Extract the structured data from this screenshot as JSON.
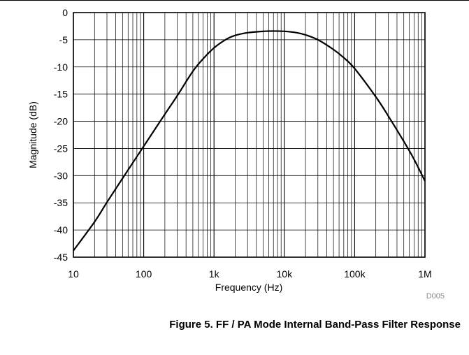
{
  "figure": {
    "id": "D005",
    "caption": "Figure 5. FF / PA Mode Internal Band-Pass Filter Response"
  },
  "chart_data": {
    "type": "line",
    "xscale": "log",
    "xlabel": "Frequency (Hz)",
    "ylabel": "Magnitude (dB)",
    "xlim": [
      10,
      1000000
    ],
    "ylim": [
      -45,
      0
    ],
    "grid": true,
    "x_ticks": [
      {
        "value": 10,
        "label": "10"
      },
      {
        "value": 100,
        "label": "100"
      },
      {
        "value": 1000,
        "label": "1k"
      },
      {
        "value": 10000,
        "label": "10k"
      },
      {
        "value": 100000,
        "label": "100k"
      },
      {
        "value": 1000000,
        "label": "1M"
      }
    ],
    "y_ticks": [
      {
        "value": 0,
        "label": "0"
      },
      {
        "value": -5,
        "label": "-5"
      },
      {
        "value": -10,
        "label": "-10"
      },
      {
        "value": -15,
        "label": "-15"
      },
      {
        "value": -20,
        "label": "-20"
      },
      {
        "value": -25,
        "label": "-25"
      },
      {
        "value": -30,
        "label": "-30"
      },
      {
        "value": -35,
        "label": "-35"
      },
      {
        "value": -40,
        "label": "-40"
      },
      {
        "value": -45,
        "label": "-45"
      }
    ],
    "series": [
      {
        "color": "#000000",
        "x": [
          10,
          20,
          30,
          50,
          100,
          200,
          300,
          500,
          700,
          1000,
          1500,
          2000,
          3000,
          5000,
          7000,
          10000,
          15000,
          20000,
          30000,
          50000,
          70000,
          100000,
          200000,
          300000,
          500000,
          700000,
          1000000
        ],
        "y": [
          -43.8,
          -38.5,
          -34.9,
          -30.5,
          -24.6,
          -18.7,
          -15.3,
          -10.8,
          -8.5,
          -6.5,
          -4.9,
          -4.2,
          -3.7,
          -3.45,
          -3.4,
          -3.45,
          -3.7,
          -4.1,
          -5.0,
          -6.8,
          -8.3,
          -10.3,
          -15.5,
          -19.0,
          -23.7,
          -27.0,
          -31.0
        ]
      }
    ]
  }
}
